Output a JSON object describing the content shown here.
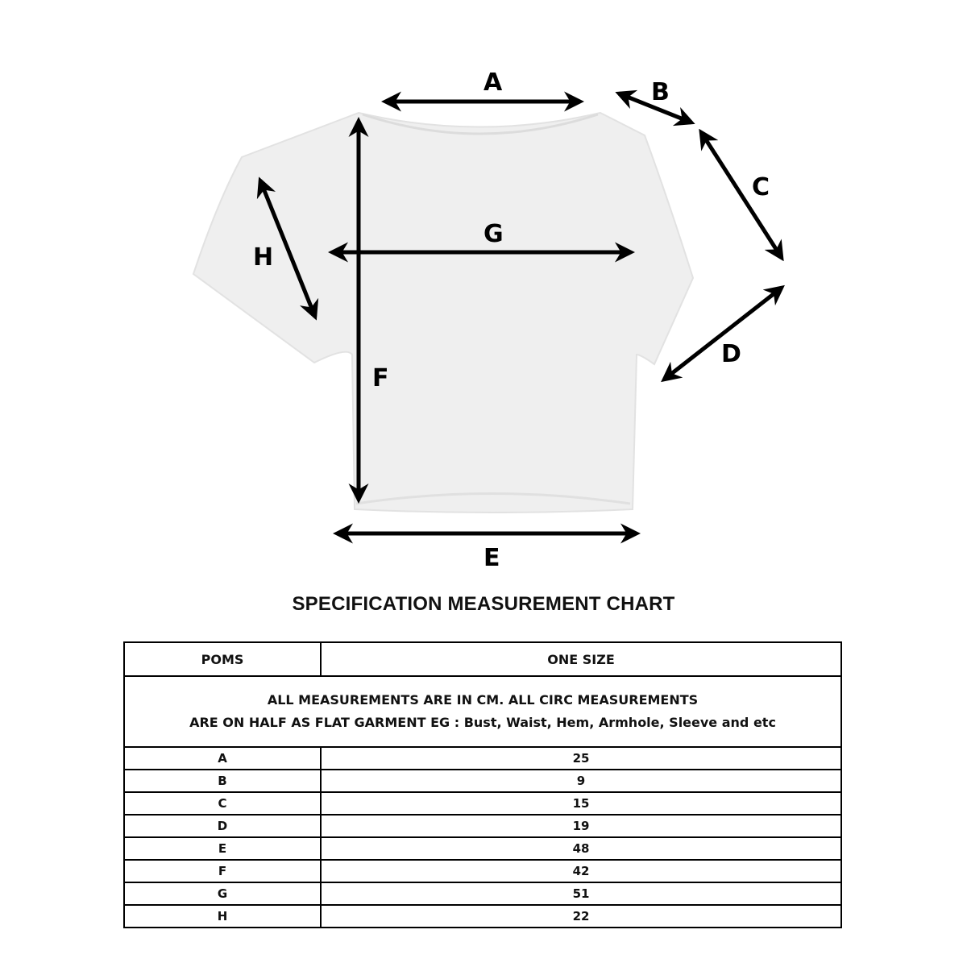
{
  "diagram": {
    "labels": {
      "A": "A",
      "B": "B",
      "C": "C",
      "D": "D",
      "E": "E",
      "F": "F",
      "G": "G",
      "H": "H"
    },
    "garment_color": "#efefef",
    "arrow_color": "#000000"
  },
  "title": "SPECIFICATION MEASUREMENT CHART",
  "table": {
    "headers": {
      "poms": "POMS",
      "size": "ONE SIZE"
    },
    "note_line1": "ALL MEASUREMENTS ARE IN CM. ALL CIRC MEASUREMENTS",
    "note_line2": "ARE ON HALF AS FLAT GARMENT EG : Bust, Waist, Hem, Armhole,  Sleeve and etc",
    "rows": [
      {
        "pom": "A",
        "value": "25"
      },
      {
        "pom": "B",
        "value": "9"
      },
      {
        "pom": "C",
        "value": "15"
      },
      {
        "pom": "D",
        "value": "19"
      },
      {
        "pom": "E",
        "value": "48"
      },
      {
        "pom": "F",
        "value": "42"
      },
      {
        "pom": "G",
        "value": "51"
      },
      {
        "pom": "H",
        "value": "22"
      }
    ]
  }
}
